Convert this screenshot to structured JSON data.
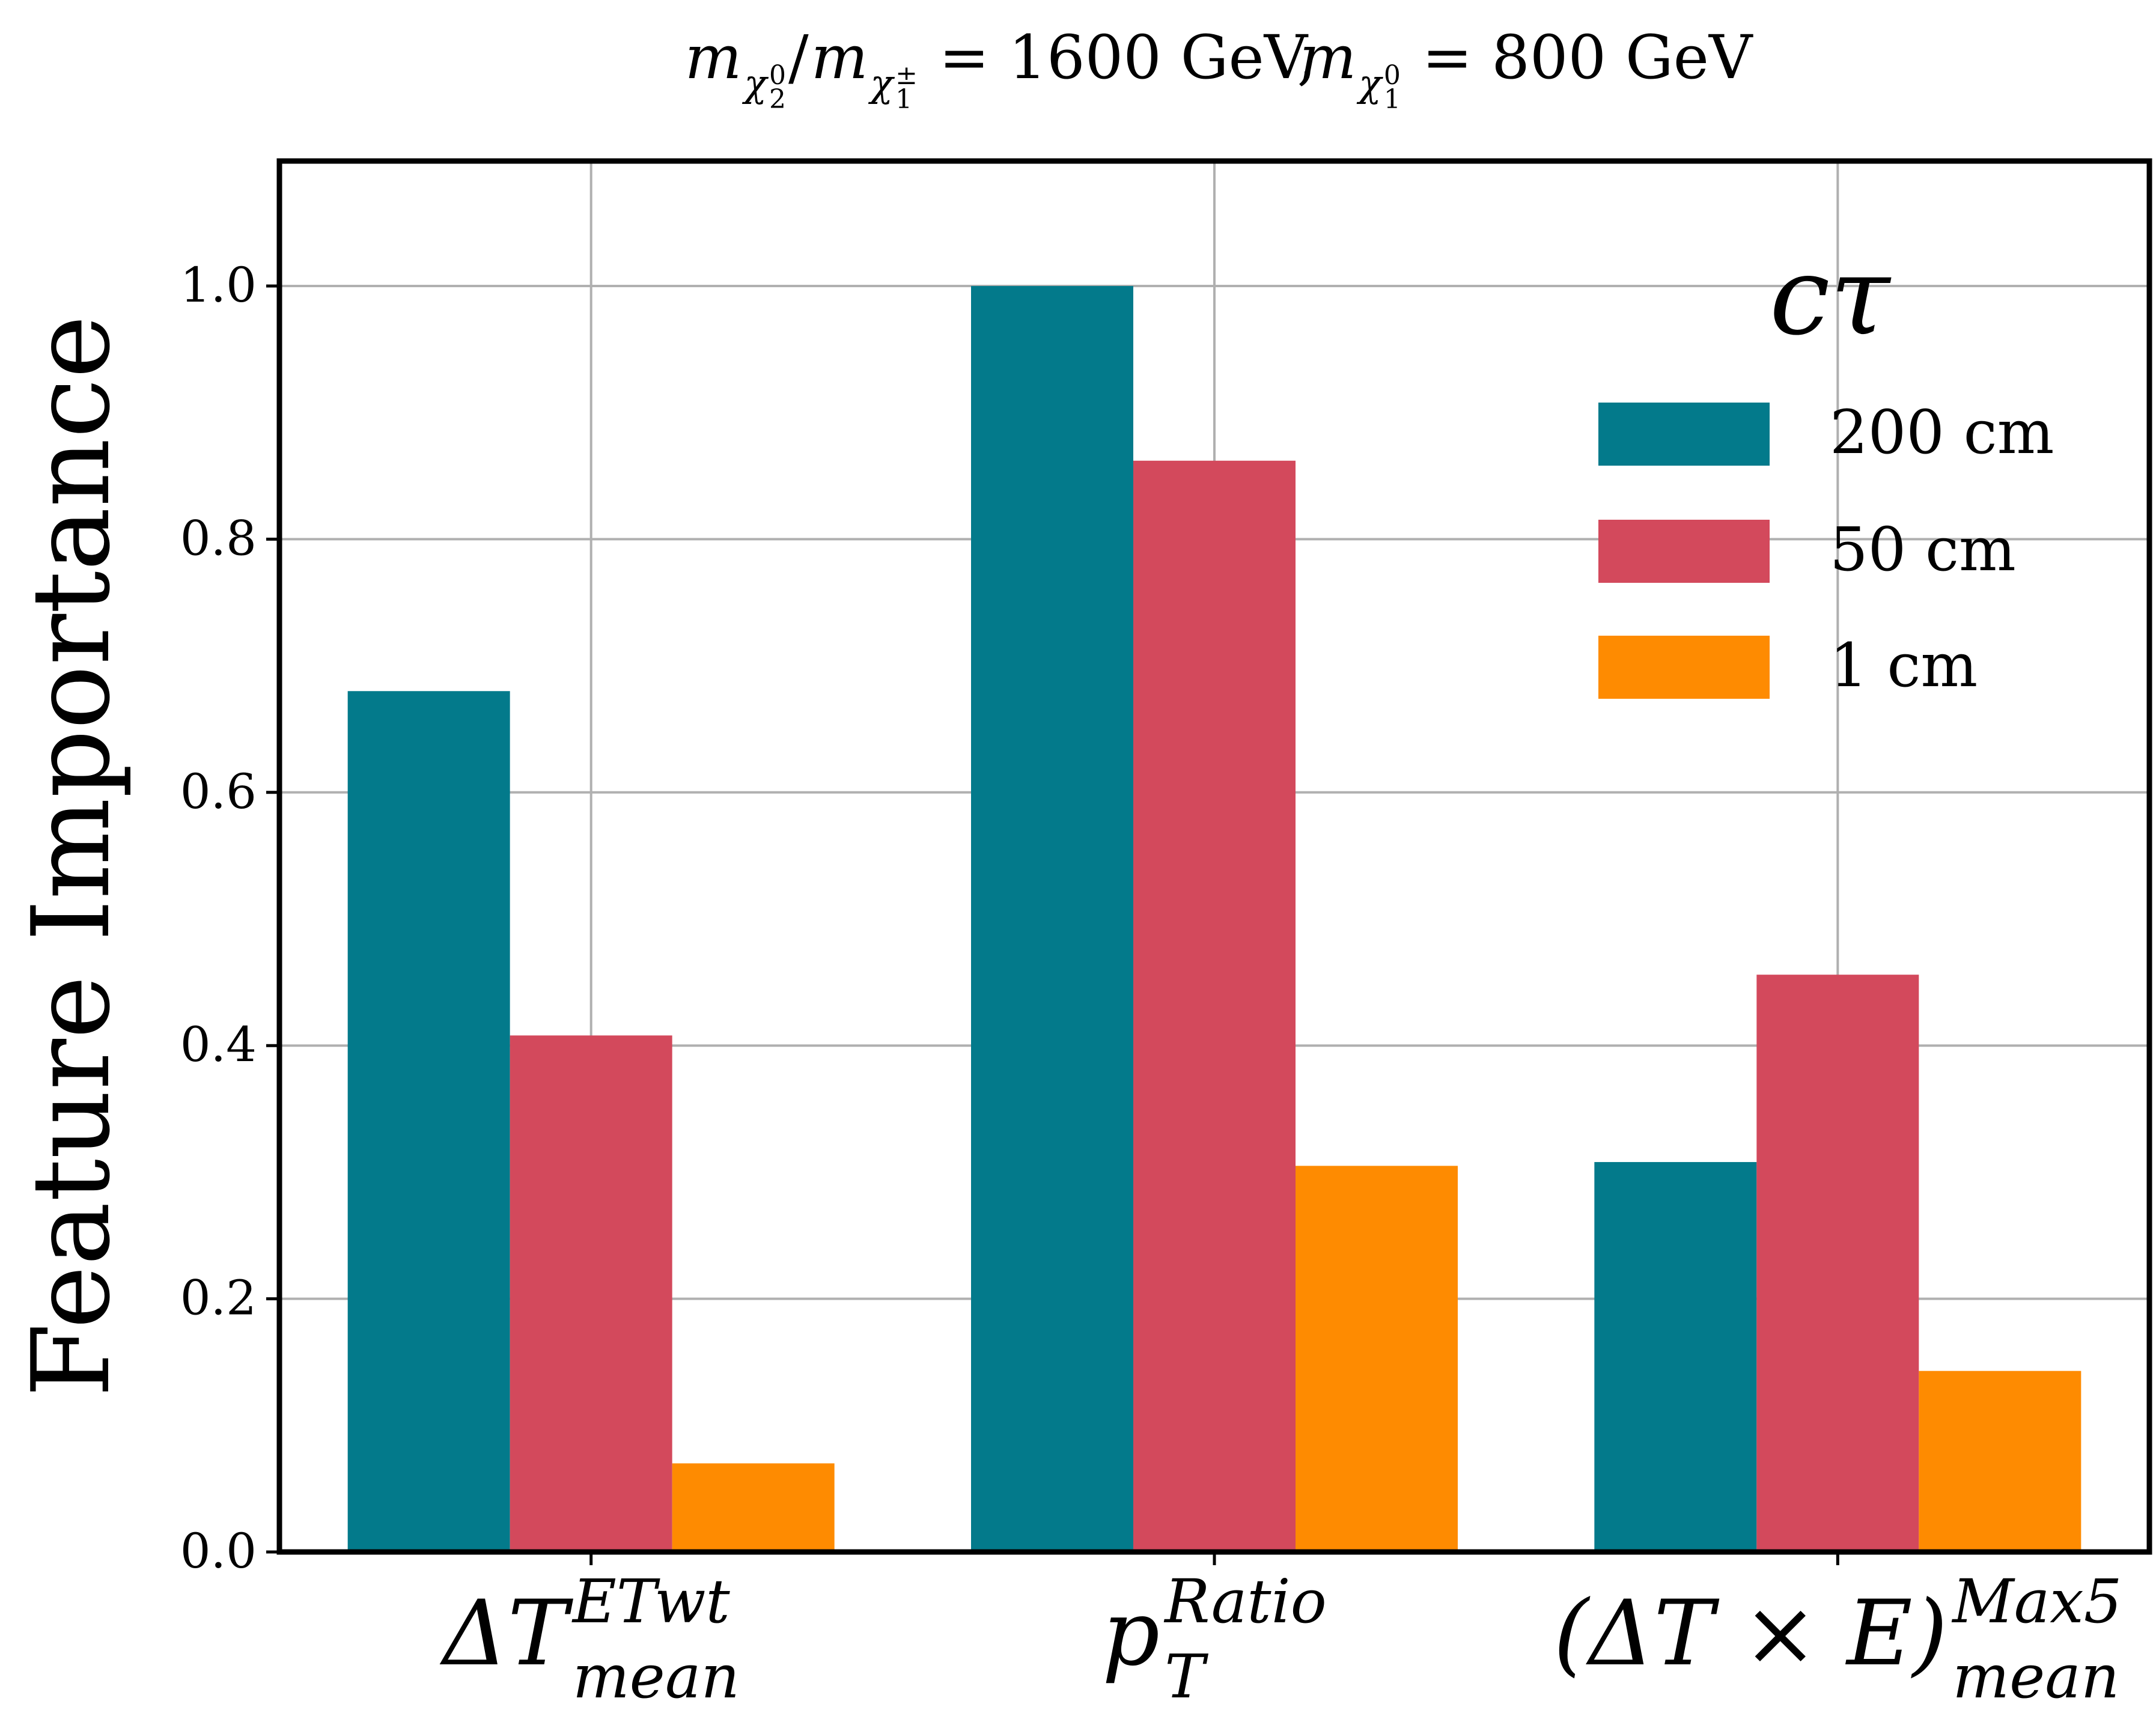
{
  "chart_data": {
    "type": "bar",
    "title": "m_{χ₂⁰}/m_{χ₁^±} = 1600 GeV, m_{χ₁⁰} = 800 GeV",
    "title_parts": {
      "m1": "m",
      "sub1": "χ",
      "sub1_index": "2",
      "sub1_sup": "0",
      "slash": "/",
      "m2": "m",
      "sub2": "χ",
      "sub2_index": "1",
      "sub2_sup": "±",
      "eq1": " = 1600 GeV, ",
      "m3": "m",
      "sub3": "χ",
      "sub3_index": "1",
      "sub3_sup": "0",
      "eq2": " = 800 GeV"
    },
    "ylabel": "Feature Importance",
    "xlabel": "",
    "ylim": [
      0,
      1.1
    ],
    "yticks": [
      "0.0",
      "0.2",
      "0.4",
      "0.6",
      "0.8",
      "1.0"
    ],
    "ytick_values": [
      0.0,
      0.2,
      0.4,
      0.6,
      0.8,
      1.0
    ],
    "grid": true,
    "categories": [
      {
        "base": "ΔT",
        "sup": "ETwt",
        "sub": "mean"
      },
      {
        "base": "p",
        "sup": "Ratio",
        "sub": "T"
      },
      {
        "base": "(ΔT × E)",
        "sup": "Max5",
        "sub": "mean"
      }
    ],
    "legend": {
      "title": "cτ",
      "placement": "top-right"
    },
    "series": [
      {
        "name": "200 cm",
        "color": "#037a8b",
        "values": [
          0.68,
          1.0,
          0.308
        ]
      },
      {
        "name": "50 cm",
        "color": "#d3495c",
        "values": [
          0.408,
          0.862,
          0.456
        ]
      },
      {
        "name": "1 cm",
        "color": "#fe8b01",
        "values": [
          0.07,
          0.305,
          0.143
        ]
      }
    ]
  }
}
